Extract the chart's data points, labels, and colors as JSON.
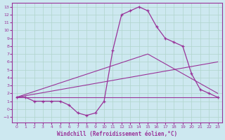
{
  "xlabel": "Windchill (Refroidissement éolien,°C)",
  "background_color": "#cde8f0",
  "grid_color": "#b0d4cc",
  "line_color": "#993399",
  "xlim": [
    -0.5,
    23.5
  ],
  "ylim": [
    -1.7,
    13.5
  ],
  "xticks": [
    0,
    1,
    2,
    3,
    4,
    5,
    6,
    7,
    8,
    9,
    10,
    11,
    12,
    13,
    14,
    15,
    16,
    17,
    18,
    19,
    20,
    21,
    22,
    23
  ],
  "yticks": [
    -1,
    0,
    1,
    2,
    3,
    4,
    5,
    6,
    7,
    8,
    9,
    10,
    11,
    12,
    13
  ],
  "line1_x": [
    0,
    1,
    2,
    3,
    4,
    5,
    6,
    7,
    8,
    9,
    10,
    11,
    12,
    13,
    14,
    15,
    16,
    17,
    18,
    19,
    20,
    21,
    22,
    23
  ],
  "line1_y": [
    1.5,
    1.5,
    1.0,
    1.0,
    1.0,
    1.0,
    0.5,
    -0.5,
    -0.8,
    -0.5,
    1.0,
    7.5,
    12.0,
    12.5,
    13.0,
    12.5,
    10.5,
    9.0,
    8.5,
    8.0,
    4.5,
    2.5,
    2.0,
    1.5
  ],
  "line2_x": [
    0,
    23
  ],
  "line2_y": [
    1.5,
    6.0
  ],
  "line3_x": [
    0,
    23
  ],
  "line3_y": [
    1.5,
    1.5
  ],
  "line4_x": [
    0,
    15,
    23
  ],
  "line4_y": [
    1.5,
    7.0,
    2.0
  ]
}
